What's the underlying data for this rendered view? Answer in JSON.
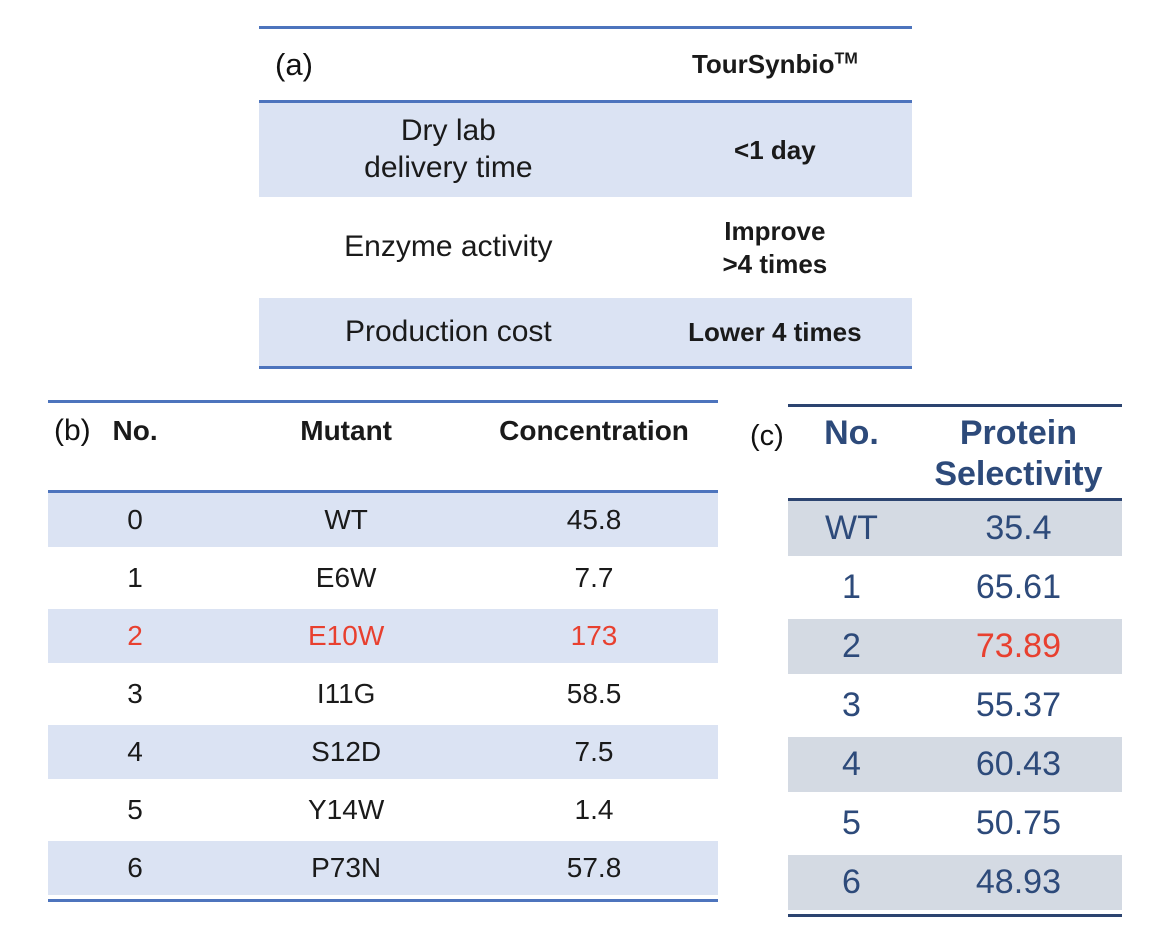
{
  "panels": {
    "a": {
      "label": "(a)",
      "brand": "TourSynbio",
      "brand_sup": "TM",
      "rows": [
        {
          "feature1": "Dry lab",
          "feature2": "delivery time",
          "value1": "<1 day"
        },
        {
          "feature1": "Enzyme activity",
          "value1": "Improve",
          "value2": ">4 times"
        },
        {
          "feature1": "Production cost",
          "value1": "Lower 4 times"
        }
      ]
    },
    "b": {
      "label": "(b)",
      "columns": [
        "No.",
        "Mutant",
        "Concentration"
      ],
      "rows": [
        {
          "no": "0",
          "mutant": "WT",
          "concentration": "45.8"
        },
        {
          "no": "1",
          "mutant": "E6W",
          "concentration": "7.7"
        },
        {
          "no": "2",
          "mutant": "E10W",
          "concentration": "173",
          "highlight": true
        },
        {
          "no": "3",
          "mutant": "I11G",
          "concentration": "58.5"
        },
        {
          "no": "4",
          "mutant": "S12D",
          "concentration": "7.5"
        },
        {
          "no": "5",
          "mutant": "Y14W",
          "concentration": "1.4"
        },
        {
          "no": "6",
          "mutant": "P73N",
          "concentration": "57.8"
        }
      ]
    },
    "c": {
      "label": "(c)",
      "column_no": "No.",
      "column_value1": "Protein",
      "column_value2": "Selectivity",
      "rows": [
        {
          "no": "WT",
          "selectivity": "35.4"
        },
        {
          "no": "1",
          "selectivity": "65.61"
        },
        {
          "no": "2",
          "selectivity": "73.89",
          "highlight": true
        },
        {
          "no": "3",
          "selectivity": "55.37"
        },
        {
          "no": "4",
          "selectivity": "60.43"
        },
        {
          "no": "5",
          "selectivity": "50.75"
        },
        {
          "no": "6",
          "selectivity": "48.93"
        }
      ]
    }
  },
  "colors": {
    "rule_blue": "#4d74bd",
    "rule_navy": "#2c4470",
    "band_light_blue": "#dbe3f3",
    "band_gray_blue": "#d4dae3",
    "text_navy": "#2d4a7a",
    "highlight_red": "#e8402f"
  }
}
